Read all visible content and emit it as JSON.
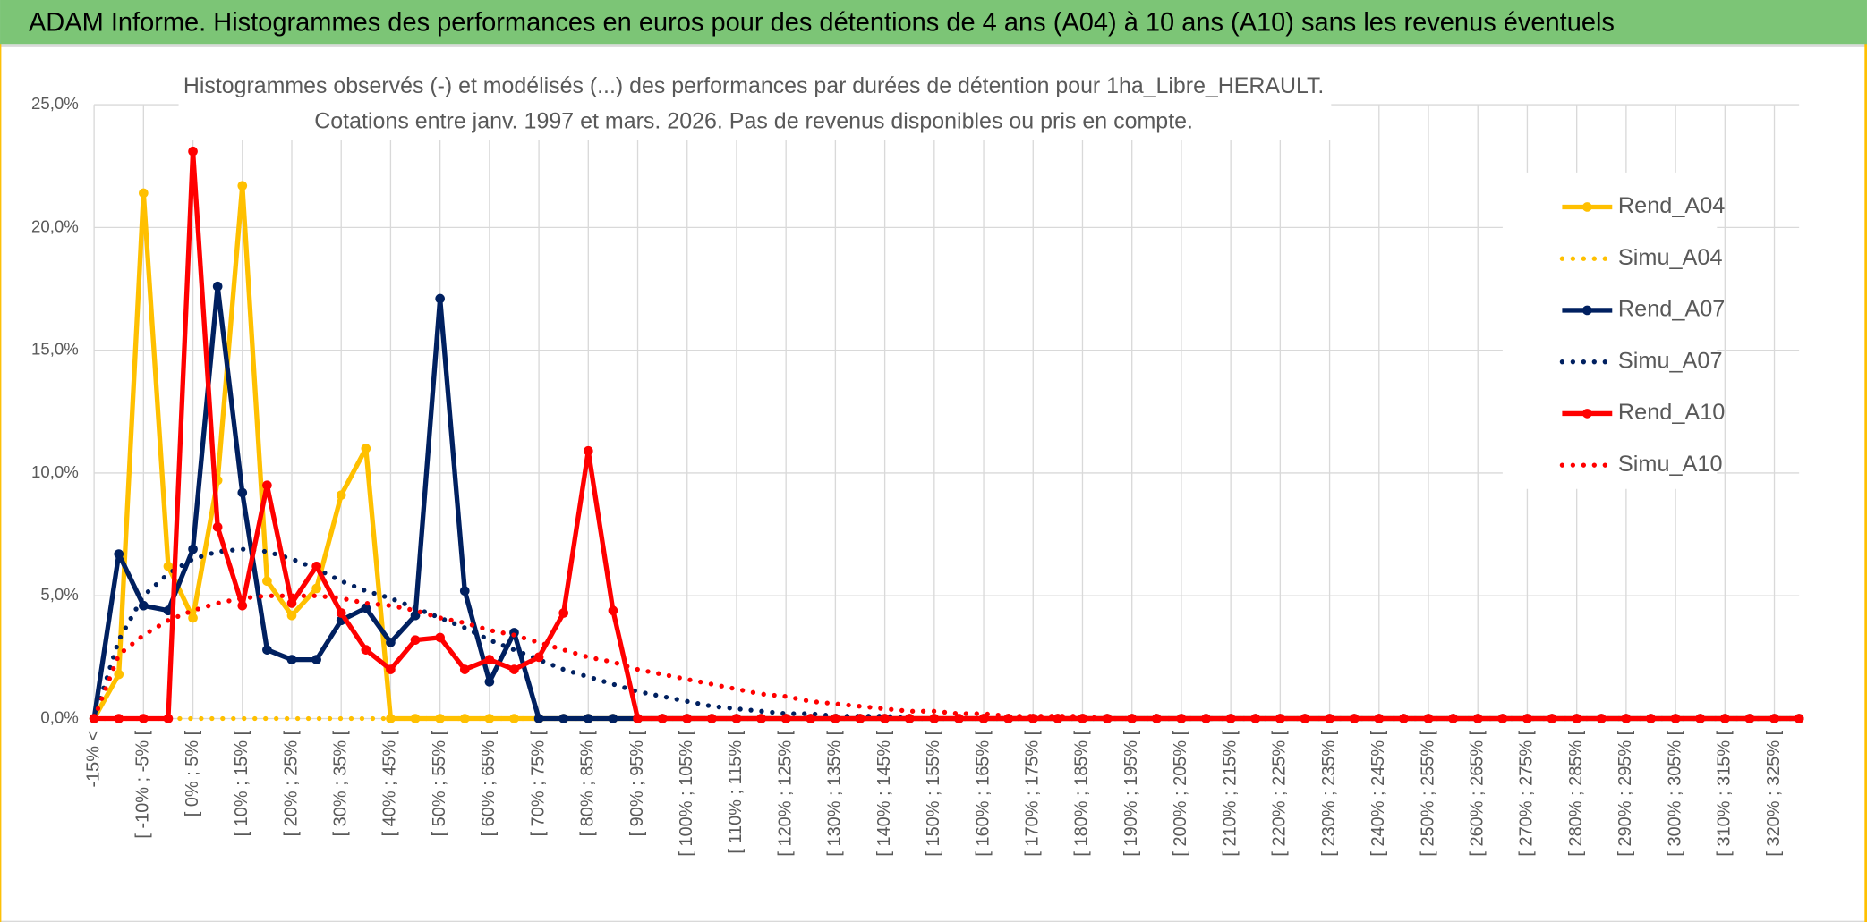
{
  "banner": {
    "title": "ADAM Informe. Histogrammes des performances en euros pour des détentions de 4 ans (A04) à 10 ans (A10) sans les revenus éventuels"
  },
  "chart_data": {
    "type": "line",
    "title": "Histogrammes observés (-) et modélisés (...) des performances par durées de détention pour 1ha_Libre_HERAULT.",
    "subtitle": "Cotations entre janv. 1997 et mars. 2026. Pas de revenus disponibles ou pris en compte.",
    "categories": [
      "-15% <",
      null,
      "[ -10% ; -5% [",
      null,
      "[ 0% ; 5% [",
      null,
      "[ 10% ; 15% [",
      null,
      "[ 20% ; 25% [",
      null,
      "[ 30% ; 35% [",
      null,
      "[ 40% ; 45% [",
      null,
      "[ 50% ; 55% [",
      null,
      "[ 60% ; 65% [",
      null,
      "[ 70% ; 75% [",
      null,
      "[ 80% ; 85% [",
      null,
      "[ 90% ; 95% [",
      null,
      "[ 100% ; 105% [",
      null,
      "[ 110% ; 115% [",
      null,
      "[ 120% ; 125% [",
      null,
      "[ 130% ; 135% [",
      null,
      "[ 140% ; 145% [",
      null,
      "[ 150% ; 155% [",
      null,
      "[ 160% ; 165% [",
      null,
      "[ 170% ; 175% [",
      null,
      "[ 180% ; 185% [",
      null,
      "[ 190% ; 195% [",
      null,
      "[ 200% ; 205% [",
      null,
      "[ 210% ; 215% [",
      null,
      "[ 220% ; 225% [",
      null,
      "[ 230% ; 235% [",
      null,
      "[ 240% ; 245% [",
      null,
      "[ 250% ; 255% [",
      null,
      "[ 260% ; 265% [",
      null,
      "[ 270% ; 275% [",
      null,
      "[ 280% ; 285% [",
      null,
      "[ 290% ; 295% [",
      null,
      "[ 300% ; 305% [",
      null,
      "[ 310% ; 315% [",
      null,
      "[ 320% ; 325% [",
      null
    ],
    "series": [
      {
        "name": "Rend_A04",
        "color": "#ffc000",
        "style": "solid",
        "markers": true,
        "values": [
          0,
          1.8,
          21.4,
          6.2,
          4.1,
          9.7,
          21.7,
          5.6,
          4.2,
          5.3,
          9.1,
          11.0,
          0,
          0,
          0,
          0,
          0,
          0,
          0,
          0,
          0,
          0,
          0,
          0,
          0,
          0,
          0,
          0,
          0,
          0,
          0,
          0,
          0,
          0,
          0,
          0,
          0,
          0,
          0,
          0,
          0,
          0,
          0,
          0,
          0,
          0,
          0,
          0,
          0,
          0,
          0,
          0,
          0,
          0,
          0,
          0,
          0,
          0,
          0,
          0,
          0,
          0,
          0,
          0,
          0,
          0,
          0,
          0,
          0,
          0
        ]
      },
      {
        "name": "Simu_A04",
        "color": "#ffc000",
        "style": "dotted",
        "markers": false,
        "values": [
          0,
          0,
          0,
          0,
          0,
          0,
          0,
          0,
          0,
          0,
          0,
          0,
          0,
          0,
          0,
          0,
          0,
          0,
          0,
          0,
          0,
          0,
          0,
          0,
          0,
          0,
          0,
          0,
          0,
          0,
          0,
          0,
          0,
          0,
          0,
          0,
          0,
          0,
          0,
          0,
          0,
          0,
          0,
          0,
          0,
          0,
          0,
          0,
          0,
          0,
          0,
          0,
          0,
          0,
          0,
          0,
          0,
          0,
          0,
          0,
          0,
          0,
          0,
          0,
          0,
          0,
          0,
          0,
          0,
          0
        ]
      },
      {
        "name": "Rend_A07",
        "color": "#002060",
        "style": "solid",
        "markers": true,
        "values": [
          0,
          6.7,
          4.6,
          4.4,
          6.9,
          17.6,
          9.2,
          2.8,
          2.4,
          2.4,
          4.0,
          4.5,
          3.1,
          4.2,
          17.1,
          5.2,
          1.5,
          3.5,
          0,
          0,
          0,
          0,
          0,
          0,
          0,
          0,
          0,
          0,
          0,
          0,
          0,
          0,
          0,
          0,
          0,
          0,
          0,
          0,
          0,
          0,
          0,
          0,
          0,
          0,
          0,
          0,
          0,
          0,
          0,
          0,
          0,
          0,
          0,
          0,
          0,
          0,
          0,
          0,
          0,
          0,
          0,
          0,
          0,
          0,
          0,
          0,
          0,
          0,
          0,
          0
        ]
      },
      {
        "name": "Simu_A07",
        "color": "#002060",
        "style": "dotted",
        "markers": false,
        "values": [
          0,
          3.2,
          5.0,
          5.9,
          6.5,
          6.8,
          6.9,
          6.8,
          6.5,
          6.1,
          5.6,
          5.2,
          4.9,
          4.5,
          4.1,
          3.7,
          3.2,
          2.8,
          2.4,
          2.0,
          1.7,
          1.4,
          1.1,
          0.9,
          0.7,
          0.5,
          0.4,
          0.3,
          0.2,
          0.2,
          0.1,
          0.1,
          0.1,
          0,
          0,
          0,
          0,
          0,
          0,
          0,
          0,
          0,
          0,
          0,
          0,
          0,
          0,
          0,
          0,
          0,
          0,
          0,
          0,
          0,
          0,
          0,
          0,
          0,
          0,
          0,
          0,
          0,
          0,
          0,
          0,
          0,
          0,
          0,
          0,
          0
        ]
      },
      {
        "name": "Rend_A10",
        "color": "#ff0000",
        "style": "solid",
        "markers": true,
        "values": [
          0,
          0,
          0,
          0,
          23.1,
          7.8,
          4.6,
          9.5,
          4.7,
          6.2,
          4.3,
          2.8,
          2.0,
          3.2,
          3.3,
          2.0,
          2.4,
          2.0,
          2.5,
          4.3,
          10.9,
          4.4,
          0,
          0,
          0,
          0,
          0,
          0,
          0,
          0,
          0,
          0,
          0,
          0,
          0,
          0,
          0,
          0,
          0,
          0,
          0,
          0,
          0,
          0,
          0,
          0,
          0,
          0,
          0,
          0,
          0,
          0,
          0,
          0,
          0,
          0,
          0,
          0,
          0,
          0,
          0,
          0,
          0,
          0,
          0,
          0,
          0,
          0,
          0,
          0
        ]
      },
      {
        "name": "Simu_A10",
        "color": "#ff0000",
        "style": "dotted",
        "markers": false,
        "values": [
          0,
          2.6,
          3.4,
          4.0,
          4.4,
          4.7,
          4.9,
          5.0,
          5.0,
          5.0,
          4.9,
          4.7,
          4.6,
          4.4,
          4.1,
          3.9,
          3.6,
          3.4,
          3.1,
          2.8,
          2.5,
          2.3,
          2.0,
          1.8,
          1.6,
          1.4,
          1.2,
          1.0,
          0.9,
          0.7,
          0.6,
          0.5,
          0.4,
          0.3,
          0.3,
          0.2,
          0.2,
          0.1,
          0.1,
          0.1,
          0.1,
          0,
          0,
          0,
          0,
          0,
          0,
          0,
          0,
          0,
          0,
          0,
          0,
          0,
          0,
          0,
          0,
          0,
          0,
          0,
          0,
          0,
          0,
          0,
          0,
          0,
          0,
          0,
          0,
          0
        ]
      }
    ],
    "ylim": [
      0,
      25
    ],
    "yticks": [
      {
        "value": 0,
        "label": "0,0%"
      },
      {
        "value": 5,
        "label": "5,0%"
      },
      {
        "value": 10,
        "label": "10,0%"
      },
      {
        "value": 15,
        "label": "15,0%"
      },
      {
        "value": 20,
        "label": "20,0%"
      },
      {
        "value": 25,
        "label": "25,0%"
      }
    ],
    "grid": true,
    "legend": "right"
  }
}
